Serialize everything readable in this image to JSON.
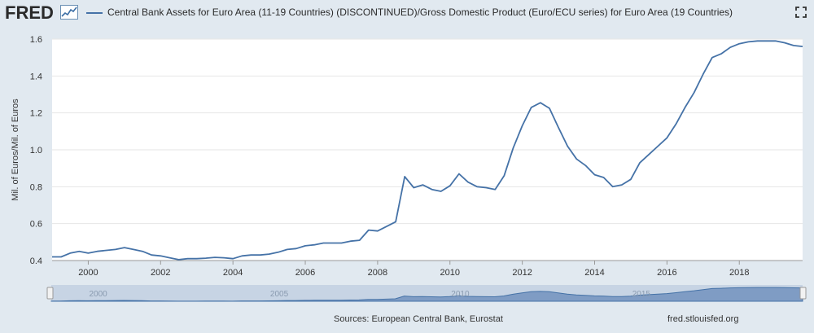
{
  "header": {
    "logo_text": "FRED",
    "series_title": "Central Bank Assets for Euro Area (11-19 Countries) (DISCONTINUED)/Gross Domestic Product (Euro/ECU series) for Euro Area (19 Countries)"
  },
  "footer": {
    "sources": "Sources: European Central Bank, Eurostat",
    "url": "fred.stlouisfed.org"
  },
  "navigator": {
    "labels": [
      "2000",
      "2005",
      "2010",
      "2015"
    ]
  },
  "chart_data": {
    "type": "line",
    "title": "Central Bank Assets for Euro Area (11-19 Countries) (DISCONTINUED)/Gross Domestic Product (Euro/ECU series) for Euro Area (19 Countries)",
    "ylabel": "Mil. of Euros/Mil. of Euros",
    "xlabel": "",
    "ylim": [
      0.4,
      1.6
    ],
    "xlim": [
      1999.0,
      2019.75
    ],
    "yticks": [
      "0.4",
      "0.6",
      "0.8",
      "1.0",
      "1.2",
      "1.4",
      "1.6"
    ],
    "xticks": [
      "2000",
      "2002",
      "2004",
      "2006",
      "2008",
      "2010",
      "2012",
      "2014",
      "2016",
      "2018"
    ],
    "color": "#4572a7",
    "grid": true,
    "series": [
      {
        "x": [
          1999.0,
          1999.25,
          1999.5,
          1999.75,
          2000.0,
          2000.25,
          2000.5,
          2000.75,
          2001.0,
          2001.25,
          2001.5,
          2001.75,
          2002.0,
          2002.25,
          2002.5,
          2002.75,
          2003.0,
          2003.25,
          2003.5,
          2003.75,
          2004.0,
          2004.25,
          2004.5,
          2004.75,
          2005.0,
          2005.25,
          2005.5,
          2005.75,
          2006.0,
          2006.25,
          2006.5,
          2006.75,
          2007.0,
          2007.25,
          2007.5,
          2007.75,
          2008.0,
          2008.25,
          2008.5,
          2008.75,
          2009.0,
          2009.25,
          2009.5,
          2009.75,
          2010.0,
          2010.25,
          2010.5,
          2010.75,
          2011.0,
          2011.25,
          2011.5,
          2011.75,
          2012.0,
          2012.25,
          2012.5,
          2012.75,
          2013.0,
          2013.25,
          2013.5,
          2013.75,
          2014.0,
          2014.25,
          2014.5,
          2014.75,
          2015.0,
          2015.25,
          2015.5,
          2015.75,
          2016.0,
          2016.25,
          2016.5,
          2016.75,
          2017.0,
          2017.25,
          2017.5,
          2017.75,
          2018.0,
          2018.25,
          2018.5,
          2018.75,
          2019.0,
          2019.25,
          2019.5,
          2019.75
        ],
        "values": [
          0.42,
          0.42,
          0.44,
          0.45,
          0.44,
          0.45,
          0.455,
          0.46,
          0.47,
          0.46,
          0.45,
          0.43,
          0.425,
          0.415,
          0.405,
          0.41,
          0.41,
          0.413,
          0.417,
          0.415,
          0.41,
          0.425,
          0.43,
          0.43,
          0.435,
          0.445,
          0.46,
          0.465,
          0.48,
          0.485,
          0.495,
          0.495,
          0.495,
          0.505,
          0.51,
          0.565,
          0.56,
          0.585,
          0.61,
          0.855,
          0.795,
          0.81,
          0.785,
          0.775,
          0.805,
          0.87,
          0.825,
          0.8,
          0.795,
          0.785,
          0.86,
          1.01,
          1.13,
          1.23,
          1.255,
          1.225,
          1.12,
          1.02,
          0.95,
          0.915,
          0.865,
          0.85,
          0.8,
          0.81,
          0.84,
          0.93,
          0.975,
          1.02,
          1.065,
          1.14,
          1.23,
          1.31,
          1.41,
          1.5,
          1.52,
          1.555,
          1.575,
          1.585,
          1.59,
          1.59,
          1.59,
          1.58,
          1.565,
          1.56
        ]
      }
    ]
  }
}
